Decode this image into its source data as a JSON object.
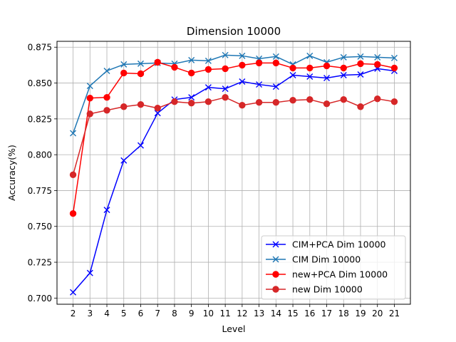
{
  "chart_data": {
    "type": "line",
    "title": "Dimension 10000",
    "xlabel": "Level",
    "ylabel": "Accuracy(%)",
    "x": [
      2,
      3,
      4,
      5,
      6,
      7,
      8,
      9,
      10,
      11,
      12,
      13,
      14,
      15,
      16,
      17,
      18,
      19,
      20,
      21
    ],
    "xlim": [
      1.05,
      21.95
    ],
    "ylim": [
      0.6957,
      0.8791
    ],
    "yticks": [
      0.7,
      0.725,
      0.75,
      0.775,
      0.8,
      0.825,
      0.85,
      0.875
    ],
    "ytick_labels": [
      "0.700",
      "0.725",
      "0.750",
      "0.775",
      "0.800",
      "0.825",
      "0.850",
      "0.875"
    ],
    "grid": true,
    "legend_position": "lower-right",
    "series": [
      {
        "name": "CIM+PCA Dim 10000",
        "color": "#0000ff",
        "marker": "x",
        "values": [
          0.704,
          0.7175,
          0.7615,
          0.796,
          0.8065,
          0.829,
          0.8385,
          0.84,
          0.847,
          0.846,
          0.851,
          0.849,
          0.8475,
          0.8555,
          0.8545,
          0.8535,
          0.8555,
          0.856,
          0.86,
          0.8585
        ]
      },
      {
        "name": "CIM Dim 10000",
        "color": "#1f77b4",
        "marker": "x",
        "values": [
          0.815,
          0.848,
          0.8585,
          0.863,
          0.8635,
          0.864,
          0.8635,
          0.866,
          0.8655,
          0.8695,
          0.869,
          0.867,
          0.8685,
          0.863,
          0.869,
          0.8645,
          0.868,
          0.8685,
          0.868,
          0.8675
        ]
      },
      {
        "name": "new+PCA Dim 10000",
        "color": "#ff0000",
        "marker": "o",
        "values": [
          0.759,
          0.8395,
          0.84,
          0.857,
          0.8565,
          0.8645,
          0.861,
          0.857,
          0.8595,
          0.86,
          0.8625,
          0.864,
          0.864,
          0.8605,
          0.8605,
          0.862,
          0.8605,
          0.8635,
          0.863,
          0.8605
        ]
      },
      {
        "name": "new Dim 10000",
        "color": "#d62728",
        "marker": "o",
        "values": [
          0.786,
          0.8285,
          0.831,
          0.8335,
          0.835,
          0.8325,
          0.837,
          0.836,
          0.837,
          0.84,
          0.8345,
          0.8365,
          0.8365,
          0.838,
          0.8385,
          0.8355,
          0.8385,
          0.8335,
          0.839,
          0.837
        ]
      }
    ]
  }
}
